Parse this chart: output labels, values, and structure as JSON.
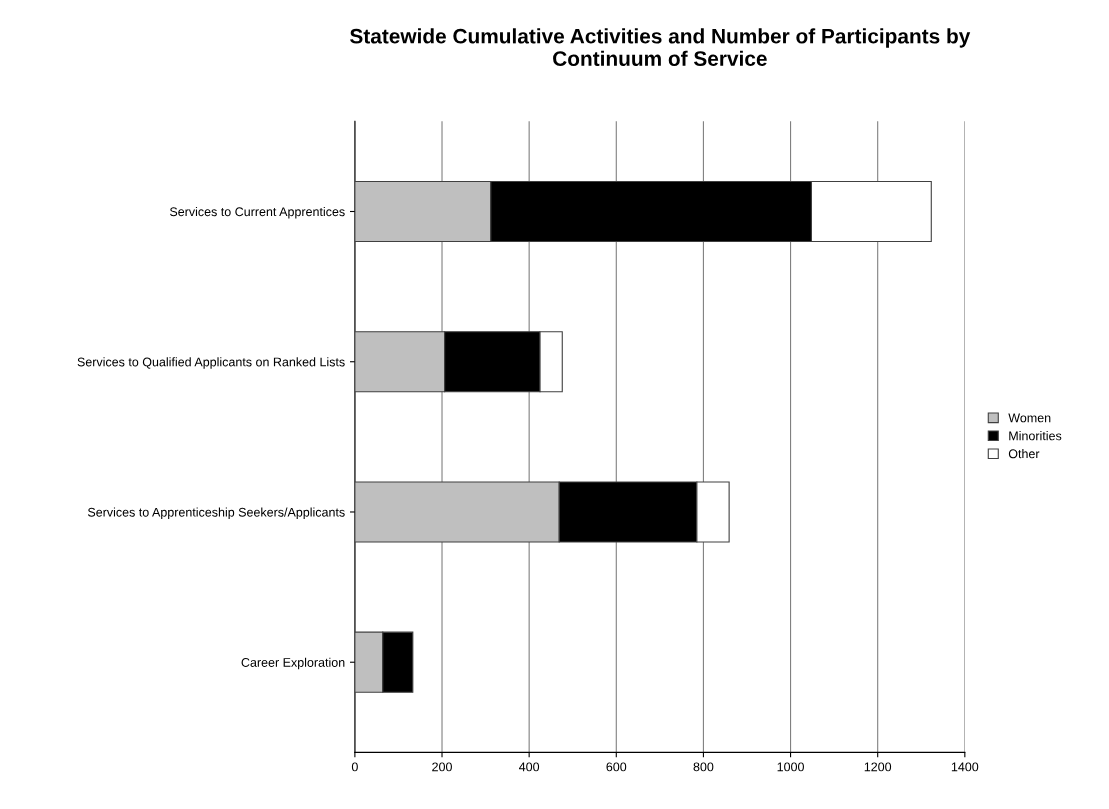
{
  "chart_data": {
    "type": "bar",
    "orientation": "horizontal",
    "stacked": true,
    "title": "Statewide Cumulative Activities and Number of Participants by\nContinuum of Service",
    "categories": [
      "Services to Current Apprentices",
      "Services to Qualified Applicants on Ranked Lists",
      "Services to Apprenticeship Seekers/Applicants",
      "Career Exploration"
    ],
    "series": [
      {
        "name": "Women",
        "color": "#bfbfbf",
        "values": [
          312,
          206,
          469,
          64
        ]
      },
      {
        "name": "Minorities",
        "color": "#000000",
        "values": [
          736,
          219,
          316,
          69
        ]
      },
      {
        "name": "Other",
        "color": "#ffffff",
        "values": [
          275,
          51,
          74,
          null
        ]
      }
    ],
    "xlim": [
      0,
      1400
    ],
    "xticks": [
      0,
      200,
      400,
      600,
      800,
      1000,
      1200,
      1400
    ],
    "grid": "x",
    "legend": "right"
  }
}
